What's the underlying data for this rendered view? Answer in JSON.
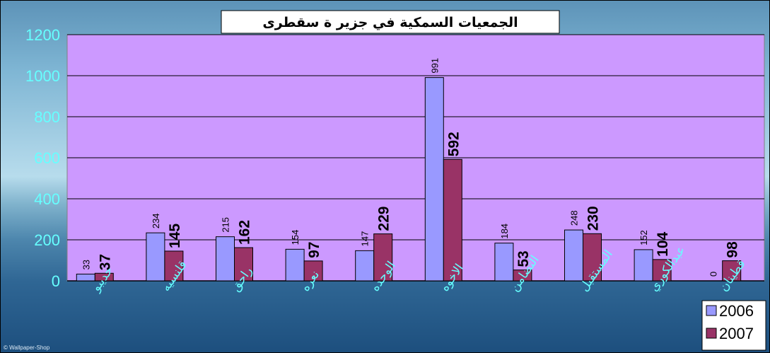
{
  "chart_data": {
    "type": "bar",
    "title": "الجمعيات السمكية في جزير ة سقطرى",
    "categories": [
      "حديبو",
      "قلنسيه",
      "راحق",
      "نعره",
      "الوحده",
      "الاخوه",
      "التضامن",
      "المستقبل",
      "عبدالكوري",
      "قطينان"
    ],
    "series": [
      {
        "name": "2006",
        "values": [
          33,
          234,
          215,
          154,
          147,
          991,
          184,
          248,
          152,
          0
        ],
        "color": "#9999ff"
      },
      {
        "name": "2007",
        "values": [
          37,
          145,
          162,
          97,
          229,
          592,
          53,
          230,
          104,
          98
        ],
        "color": "#993366"
      }
    ],
    "ylim": [
      0,
      1200
    ],
    "yticks": [
      0,
      200,
      400,
      600,
      800,
      1000,
      1200
    ],
    "ytick_labels": [
      "0",
      "200",
      "400",
      "600",
      "800",
      "1000",
      "1200"
    ],
    "grid": true,
    "legend_position": "bottom-right",
    "plot_background": "#cc99ff",
    "tick_label_color": "#66ffff"
  },
  "watermark": "© Wallpaper-Shop"
}
